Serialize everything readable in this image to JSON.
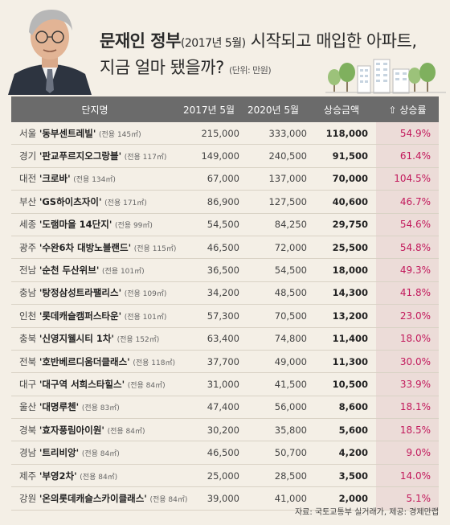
{
  "title": {
    "line1_bold": "문재인 정부",
    "line1_paren": "(2017년 5월)",
    "line1_rest": " 시작되고 매입한 아파트,",
    "line2": "지금 얼마 됐을까?",
    "unit": "(단위: 만원)"
  },
  "table": {
    "headers": [
      "단지명",
      "2017년 5월",
      "2020년 5월",
      "상승금액",
      "상승률"
    ],
    "rows": [
      {
        "region": "서울",
        "apt": "'동부센트레빌'",
        "area": "(전용 145㎡)",
        "v2017": "215,000",
        "v2020": "333,000",
        "inc": "118,000",
        "rate": "54.9%"
      },
      {
        "region": "경기",
        "apt": "'판교푸르지오그랑블'",
        "area": "(전용 117㎡)",
        "v2017": "149,000",
        "v2020": "240,500",
        "inc": "91,500",
        "rate": "61.4%"
      },
      {
        "region": "대전",
        "apt": "'크로바'",
        "area": "(전용 134㎡)",
        "v2017": "67,000",
        "v2020": "137,000",
        "inc": "70,000",
        "rate": "104.5%"
      },
      {
        "region": "부산",
        "apt": "'GS하이츠자이'",
        "area": "(전용 171㎡)",
        "v2017": "86,900",
        "v2020": "127,500",
        "inc": "40,600",
        "rate": "46.7%"
      },
      {
        "region": "세종",
        "apt": "'도램마을 14단지'",
        "area": "(전용 99㎡)",
        "v2017": "54,500",
        "v2020": "84,250",
        "inc": "29,750",
        "rate": "54.6%"
      },
      {
        "region": "광주",
        "apt": "'수완6차 대방노블랜드'",
        "area": "(전용 115㎡)",
        "v2017": "46,500",
        "v2020": "72,000",
        "inc": "25,500",
        "rate": "54.8%"
      },
      {
        "region": "전남",
        "apt": "'순천 두산위브'",
        "area": "(전용 101㎡)",
        "v2017": "36,500",
        "v2020": "54,500",
        "inc": "18,000",
        "rate": "49.3%"
      },
      {
        "region": "충남",
        "apt": "'탕정삼성트라팰리스'",
        "area": "(전용 109㎡)",
        "v2017": "34,200",
        "v2020": "48,500",
        "inc": "14,300",
        "rate": "41.8%"
      },
      {
        "region": "인천",
        "apt": "'롯데캐슬캠퍼스타운'",
        "area": "(전용 101㎡)",
        "v2017": "57,300",
        "v2020": "70,500",
        "inc": "13,200",
        "rate": "23.0%"
      },
      {
        "region": "충북",
        "apt": "'신영지웰시티 1차'",
        "area": "(전용 152㎡)",
        "v2017": "63,400",
        "v2020": "74,800",
        "inc": "11,400",
        "rate": "18.0%"
      },
      {
        "region": "전북",
        "apt": "'호반베르디움더클래스'",
        "area": "(전용 118㎡)",
        "v2017": "37,700",
        "v2020": "49,000",
        "inc": "11,300",
        "rate": "30.0%"
      },
      {
        "region": "대구",
        "apt": "'대구역 서희스타힐스'",
        "area": "(전용 84㎡)",
        "v2017": "31,000",
        "v2020": "41,500",
        "inc": "10,500",
        "rate": "33.9%"
      },
      {
        "region": "울산",
        "apt": "'대명루첸'",
        "area": "(전용 83㎡)",
        "v2017": "47,400",
        "v2020": "56,000",
        "inc": "8,600",
        "rate": "18.1%"
      },
      {
        "region": "경북",
        "apt": "'효자풍림아이원'",
        "area": "(전용 84㎡)",
        "v2017": "30,200",
        "v2020": "35,800",
        "inc": "5,600",
        "rate": "18.5%"
      },
      {
        "region": "경남",
        "apt": "'트리비앙'",
        "area": "(전용 84㎡)",
        "v2017": "46,500",
        "v2020": "50,700",
        "inc": "4,200",
        "rate": "9.0%"
      },
      {
        "region": "제주",
        "apt": "'부영2차'",
        "area": "(전용 84㎡)",
        "v2017": "25,000",
        "v2020": "28,500",
        "inc": "3,500",
        "rate": "14.0%"
      },
      {
        "region": "강원",
        "apt": "'온의롯데캐슬스카이클래스'",
        "area": "(전용 84㎡)",
        "v2017": "39,000",
        "v2020": "41,000",
        "inc": "2,000",
        "rate": "5.1%"
      }
    ]
  },
  "footer": "자료: 국토교통부 실거래가, 제공: 경제만랩",
  "colors": {
    "background": "#f4efe6",
    "header_bg": "#6b6b6b",
    "rate_text": "#c2185b",
    "rate_bg": "#ecdcd8"
  },
  "icons": [
    "portrait-photo",
    "up-arrow-icon",
    "buildings-illustration"
  ]
}
